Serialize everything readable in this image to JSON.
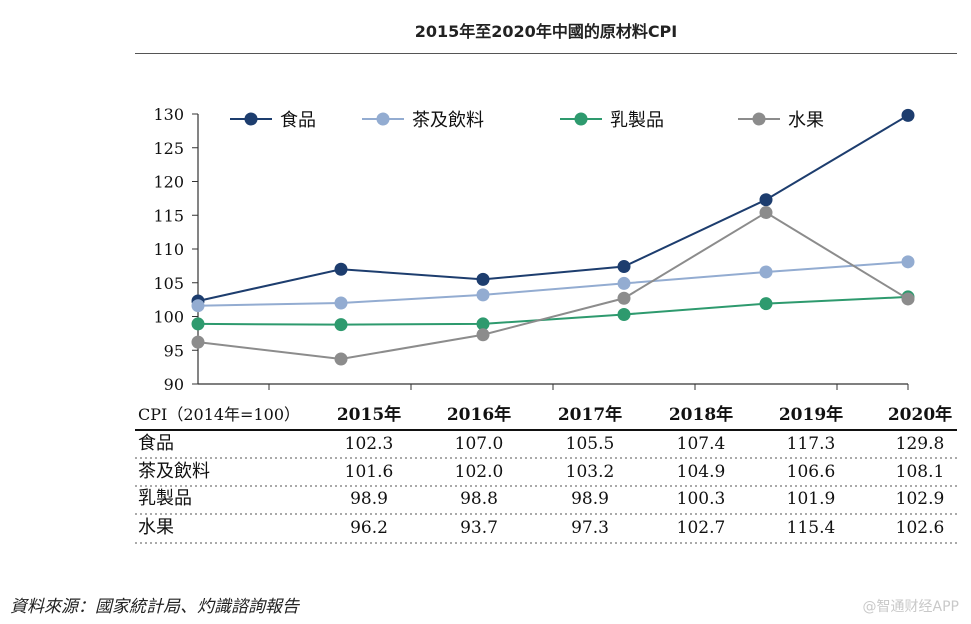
{
  "chart_data": {
    "type": "line",
    "title": "2015年至2020年中國的原材料CPI",
    "categories": [
      "2015年",
      "2016年",
      "2017年",
      "2018年",
      "2019年",
      "2020年"
    ],
    "table_header": "CPI（2014年=100）",
    "ylim": [
      90,
      130
    ],
    "yticks": [
      90,
      95,
      100,
      105,
      110,
      115,
      120,
      125,
      130
    ],
    "legend_position": "top",
    "series": [
      {
        "name": "食品",
        "color": "#1d3d6e",
        "values": [
          102.3,
          107.0,
          105.5,
          107.4,
          117.3,
          129.8
        ],
        "labels": [
          "102.3",
          "107.0",
          "105.5",
          "107.4",
          "117.3",
          "129.8"
        ]
      },
      {
        "name": "茶及飲料",
        "color": "#93acd1",
        "values": [
          101.6,
          102.0,
          103.2,
          104.9,
          106.6,
          108.1
        ],
        "labels": [
          "101.6",
          "102.0",
          "103.2",
          "104.9",
          "106.6",
          "108.1"
        ]
      },
      {
        "name": "乳製品",
        "color": "#2e9a6e",
        "values": [
          98.9,
          98.8,
          98.9,
          100.3,
          101.9,
          102.9
        ],
        "labels": [
          "98.9",
          "98.8",
          "98.9",
          "100.3",
          "101.9",
          "102.9"
        ]
      },
      {
        "name": "水果",
        "color": "#8c8c8c",
        "values": [
          96.2,
          93.7,
          97.3,
          102.7,
          115.4,
          102.6
        ],
        "labels": [
          "96.2",
          "93.7",
          "97.3",
          "102.7",
          "115.4",
          "102.6"
        ]
      }
    ]
  },
  "source": "資料來源：國家統計局、灼識諮詢報告",
  "watermark": "@智通财经APP"
}
